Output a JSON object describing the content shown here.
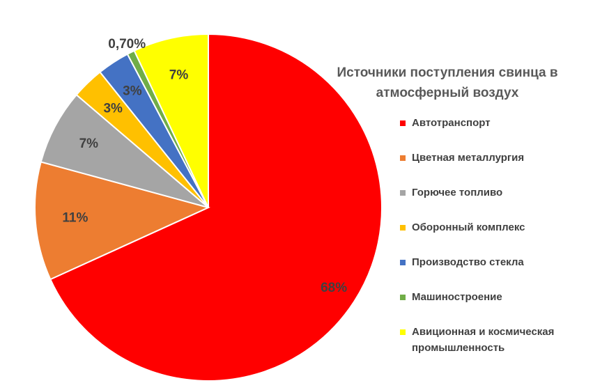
{
  "chart_data": {
    "type": "pie",
    "title": "Источники поступления свинца в атмосферный воздух",
    "legend_position": "right",
    "slices": [
      {
        "name": "Автотранспорт",
        "value": 68,
        "label": "68%",
        "color": "#ff0000"
      },
      {
        "name": "Цветная металлургия",
        "value": 11,
        "label": "11%",
        "color": "#ed7d31"
      },
      {
        "name": "Горючее топливо",
        "value": 7,
        "label": "7%",
        "color": "#a5a5a5"
      },
      {
        "name": "Оборонный комплекс",
        "value": 3,
        "label": "3%",
        "color": "#ffc000"
      },
      {
        "name": "Производство стекла",
        "value": 3,
        "label": "3%",
        "color": "#4472c4"
      },
      {
        "name": "Машиностроение",
        "value": 0.7,
        "label": "0,70%",
        "color": "#70ad47"
      },
      {
        "name": "Авиционная и космическая промышленность",
        "value": 7,
        "label": "7%",
        "color": "#ffff00"
      }
    ]
  }
}
